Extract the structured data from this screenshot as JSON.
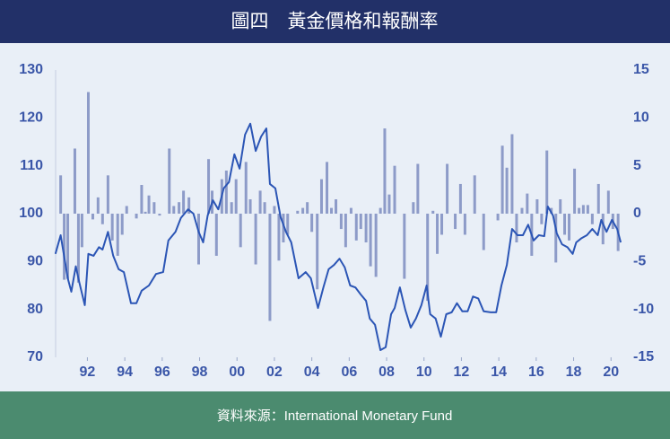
{
  "chart_data": {
    "type": "bar-line",
    "title": "圖四　黃金價格和報酬率",
    "source": "資料來源：International Monetary Fund",
    "xlim": [
      1990.3,
      2020.9
    ],
    "xticks": [
      {
        "value": 1992,
        "label": "92"
      },
      {
        "value": 1994,
        "label": "94"
      },
      {
        "value": 1996,
        "label": "96"
      },
      {
        "value": 1998,
        "label": "98"
      },
      {
        "value": 2000,
        "label": "00"
      },
      {
        "value": 2002,
        "label": "02"
      },
      {
        "value": 2004,
        "label": "04"
      },
      {
        "value": 2006,
        "label": "06"
      },
      {
        "value": 2008,
        "label": "08"
      },
      {
        "value": 2010,
        "label": "10"
      },
      {
        "value": 2012,
        "label": "12"
      },
      {
        "value": 2014,
        "label": "14"
      },
      {
        "value": 2016,
        "label": "16"
      },
      {
        "value": 2018,
        "label": "18"
      },
      {
        "value": 2020,
        "label": "20"
      }
    ],
    "ylim": [
      70,
      130
    ],
    "yticks": [
      70,
      80,
      90,
      100,
      110,
      120,
      130
    ],
    "y2lim": [
      -15,
      15
    ],
    "y2ticks": [
      -15,
      -10,
      -5,
      0,
      5,
      10,
      15
    ],
    "series": [
      {
        "type": "bar",
        "axis": "y2",
        "color": "#8d9bc8",
        "x": [
          1990.57,
          1990.76,
          1990.95,
          1991.33,
          1991.52,
          1991.71,
          1992.05,
          1992.29,
          1992.57,
          1992.81,
          1993.1,
          1993.33,
          1993.62,
          1993.86,
          1994.1,
          1994.62,
          1994.9,
          1995.1,
          1995.29,
          1995.57,
          1995.86,
          1996.38,
          1996.62,
          1996.9,
          1997.14,
          1997.43,
          1997.95,
          1998.48,
          1998.67,
          1998.9,
          1999.19,
          1999.43,
          1999.71,
          1999.95,
          2000.19,
          2000.48,
          2000.71,
          2001.0,
          2001.24,
          2001.48,
          2001.76,
          2002.0,
          2002.24,
          2002.48,
          2002.71,
          2003.24,
          2003.52,
          2003.76,
          2004.0,
          2004.29,
          2004.52,
          2004.81,
          2005.05,
          2005.29,
          2005.57,
          2005.81,
          2006.1,
          2006.38,
          2006.62,
          2006.9,
          2007.14,
          2007.43,
          2007.67,
          2007.9,
          2008.14,
          2008.43,
          2008.95,
          2009.43,
          2009.67,
          2010.19,
          2010.48,
          2010.71,
          2010.95,
          2011.24,
          2011.67,
          2011.95,
          2012.19,
          2012.71,
          2013.19,
          2013.95,
          2014.19,
          2014.43,
          2014.71,
          2014.95,
          2015.24,
          2015.52,
          2015.76,
          2016.05,
          2016.29,
          2016.57,
          2016.81,
          2017.05,
          2017.29,
          2017.52,
          2017.76,
          2018.05,
          2018.29,
          2018.52,
          2018.76,
          2019.0,
          2019.33,
          2019.57,
          2019.86,
          2020.1,
          2020.38
        ],
        "values": [
          4.0,
          -6.9,
          -6.8,
          6.8,
          -7.2,
          -3.5,
          12.7,
          -0.6,
          1.7,
          -1.1,
          4.0,
          -2.8,
          -4.4,
          -2.2,
          0.8,
          -0.5,
          3.0,
          0.2,
          1.9,
          1.2,
          -0.2,
          6.8,
          0.8,
          1.2,
          2.4,
          1.7,
          -5.3,
          5.7,
          2.4,
          -4.4,
          3.6,
          4.5,
          1.2,
          3.6,
          -3.5,
          5.4,
          1.5,
          -5.3,
          2.4,
          1.2,
          -11.2,
          0.8,
          -4.9,
          -3.0,
          -2.2,
          0.3,
          0.6,
          1.2,
          -1.9,
          -7.9,
          3.6,
          5.4,
          0.6,
          1.5,
          -1.6,
          -3.5,
          0.6,
          -2.8,
          -1.6,
          -3.0,
          -5.5,
          -6.6,
          0.6,
          8.9,
          2.0,
          5.0,
          -6.8,
          1.2,
          5.2,
          -9.1,
          0.3,
          -4.2,
          -2.2,
          5.2,
          -1.6,
          3.1,
          -2.2,
          4.0,
          -3.8,
          -0.7,
          7.1,
          4.8,
          8.3,
          -3.0,
          0.6,
          2.1,
          -4.4,
          1.5,
          -1.1,
          6.6,
          0.6,
          -5.1,
          1.5,
          -2.2,
          -2.8,
          4.7,
          0.6,
          0.9,
          0.9,
          -1.1,
          3.1,
          -3.2,
          2.4,
          -1.6,
          -3.9
        ]
      },
      {
        "type": "line",
        "color": "#2b55b5",
        "x": [
          1990.29,
          1990.57,
          1990.95,
          1991.14,
          1991.38,
          1991.57,
          1991.86,
          1992.05,
          1992.33,
          1992.62,
          1992.81,
          1993.1,
          1993.38,
          1993.67,
          1993.95,
          1994.33,
          1994.62,
          1994.9,
          1995.29,
          1995.67,
          1996.05,
          1996.33,
          1996.71,
          1997.0,
          1997.38,
          1997.67,
          1997.95,
          1998.19,
          1998.43,
          1998.71,
          1999.0,
          1999.29,
          1999.57,
          1999.86,
          2000.14,
          2000.43,
          2000.71,
          2001.0,
          2001.29,
          2001.57,
          2001.76,
          2002.05,
          2002.33,
          2002.62,
          2002.9,
          2003.29,
          2003.67,
          2003.95,
          2004.33,
          2004.62,
          2004.9,
          2005.19,
          2005.48,
          2005.76,
          2006.05,
          2006.33,
          2006.62,
          2006.9,
          2007.1,
          2007.38,
          2007.67,
          2007.95,
          2008.24,
          2008.43,
          2008.71,
          2009.0,
          2009.29,
          2009.57,
          2009.86,
          2010.14,
          2010.33,
          2010.62,
          2010.9,
          2011.19,
          2011.48,
          2011.76,
          2012.05,
          2012.33,
          2012.62,
          2012.9,
          2013.19,
          2013.57,
          2013.86,
          2014.14,
          2014.43,
          2014.71,
          2015.0,
          2015.29,
          2015.57,
          2015.86,
          2016.14,
          2016.43,
          2016.62,
          2016.9,
          2017.1,
          2017.38,
          2017.67,
          2017.95,
          2018.14,
          2018.43,
          2018.71,
          2019.0,
          2019.29,
          2019.48,
          2019.76,
          2020.05,
          2020.33,
          2020.52
        ],
        "values": [
          91.6,
          95.5,
          86.5,
          83.7,
          89,
          85.6,
          80.9,
          91.6,
          91.2,
          93,
          92.5,
          96.2,
          91.2,
          88.4,
          87.8,
          81.3,
          81.3,
          83.9,
          85,
          87.4,
          87.8,
          94.4,
          96.2,
          99.1,
          100.9,
          100,
          96.2,
          94,
          99.6,
          102.8,
          100.9,
          105.3,
          106.6,
          112.4,
          109.4,
          116.5,
          118.8,
          113.1,
          116.1,
          117.8,
          106.2,
          105.3,
          99.3,
          96.2,
          94,
          86.5,
          87.8,
          86.5,
          80.3,
          84.6,
          88.4,
          89.3,
          90.6,
          88.8,
          85,
          84.6,
          83.1,
          81.8,
          78.1,
          76.8,
          71.5,
          72.1,
          79,
          80.3,
          84.6,
          79.9,
          76.2,
          78.1,
          80.9,
          85,
          79,
          78.1,
          74.3,
          79,
          79.4,
          81.3,
          79.6,
          79.6,
          82.7,
          82.3,
          79.6,
          79.4,
          79.4,
          85,
          89.3,
          96.8,
          95.5,
          95.5,
          97.7,
          94.4,
          95.5,
          95.3,
          101.5,
          99.6,
          95.9,
          93.6,
          93,
          91.6,
          94,
          94.9,
          95.5,
          96.8,
          95.5,
          98.7,
          96.2,
          98.7,
          96.8,
          94
        ]
      }
    ]
  }
}
